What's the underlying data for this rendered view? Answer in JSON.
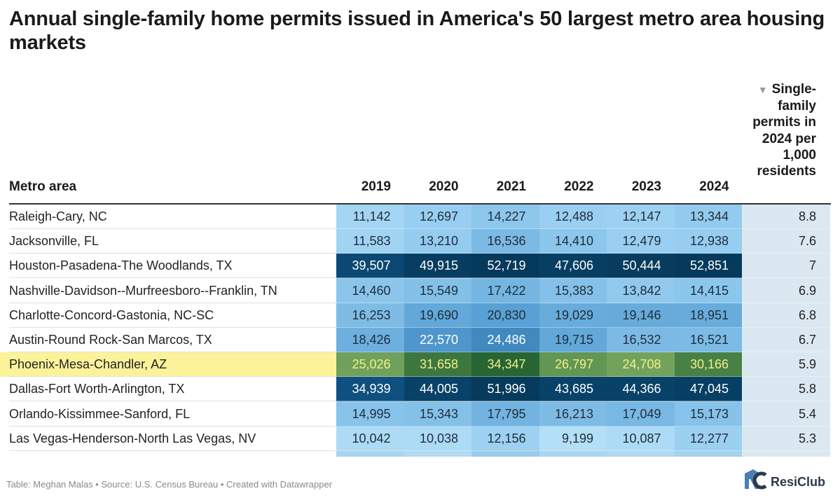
{
  "title": "Annual single-family home permits issued in America's 50 largest metro area housing markets",
  "header": {
    "metro_label": "Metro area",
    "years": [
      "2019",
      "2020",
      "2021",
      "2022",
      "2023",
      "2024"
    ],
    "sort_icon": "triangle-down-icon",
    "per_capita_label": "Single-family permits in 2024 per 1,000 residents"
  },
  "rows": [
    {
      "metro": "Raleigh-Cary, NC",
      "values": [
        "11,142",
        "12,697",
        "14,227",
        "12,488",
        "12,147",
        "13,344"
      ],
      "per_1000": "8.8",
      "highlight": false
    },
    {
      "metro": "Jacksonville, FL",
      "values": [
        "11,583",
        "13,210",
        "16,536",
        "14,410",
        "12,479",
        "12,938"
      ],
      "per_1000": "7.6",
      "highlight": false
    },
    {
      "metro": "Houston-Pasadena-The Woodlands, TX",
      "values": [
        "39,507",
        "49,915",
        "52,719",
        "47,606",
        "50,444",
        "52,851"
      ],
      "per_1000": "7",
      "highlight": false
    },
    {
      "metro": "Nashville-Davidson--Murfreesboro--Franklin, TN",
      "values": [
        "14,460",
        "15,549",
        "17,422",
        "15,383",
        "13,842",
        "14,415"
      ],
      "per_1000": "6.9",
      "highlight": false
    },
    {
      "metro": "Charlotte-Concord-Gastonia, NC-SC",
      "values": [
        "16,253",
        "19,690",
        "20,830",
        "19,029",
        "19,146",
        "18,951"
      ],
      "per_1000": "6.8",
      "highlight": false
    },
    {
      "metro": "Austin-Round Rock-San Marcos, TX",
      "values": [
        "18,426",
        "22,570",
        "24,486",
        "19,715",
        "16,532",
        "16,521"
      ],
      "per_1000": "6.7",
      "highlight": false
    },
    {
      "metro": "Phoenix-Mesa-Chandler, AZ",
      "values": [
        "25,026",
        "31,658",
        "34,347",
        "26,797",
        "24,708",
        "30,166"
      ],
      "per_1000": "5.9",
      "highlight": true
    },
    {
      "metro": "Dallas-Fort Worth-Arlington, TX",
      "values": [
        "34,939",
        "44,005",
        "51,996",
        "43,685",
        "44,366",
        "47,045"
      ],
      "per_1000": "5.8",
      "highlight": false
    },
    {
      "metro": "Orlando-Kissimmee-Sanford, FL",
      "values": [
        "14,995",
        "15,343",
        "17,795",
        "16,213",
        "17,049",
        "15,173"
      ],
      "per_1000": "5.4",
      "highlight": false
    },
    {
      "metro": "Las Vegas-Henderson-North Las Vegas, NV",
      "values": [
        "10,042",
        "10,038",
        "12,156",
        "9,199",
        "10,087",
        "12,277"
      ],
      "per_1000": "5.3",
      "highlight": false
    }
  ],
  "colors": {
    "highlight_row": "#fbf29a",
    "highlight_text": "#f4ef8a",
    "per_column_bg": "#dbe8f1"
  },
  "footer": "Table: Meghan Malas • Source: U.S. Census Bureau • Created with Datawrapper",
  "logo": {
    "text": "ResiClub",
    "icon": "resiclub-logo-icon"
  }
}
